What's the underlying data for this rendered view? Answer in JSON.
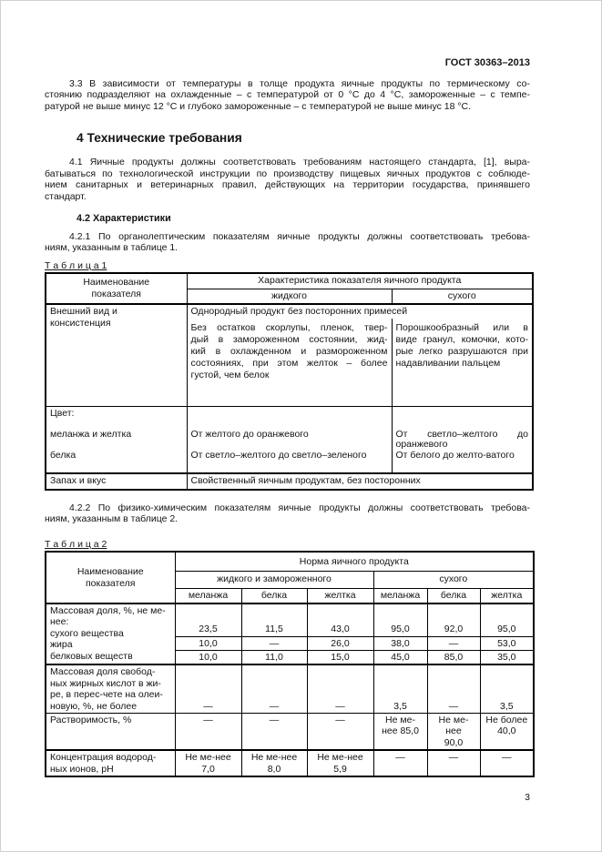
{
  "doc": {
    "header": "ГОСТ 30363–2013",
    "page_number": "3"
  },
  "sections": {
    "p33": "3.3 В зависимости от температуры в толще продукта яичные продукты по термическому со-\nстоянию подразделяют на охлажденные – с температурой от 0 °С до 4 °С, замороженные – с темпе-\nратурой не выше минус 12 °С и глубоко замороженные – с температурой не выше минус 18 °С.",
    "h4": "4 Технические требования",
    "p41": "4.1 Яичные продукты должны соответствовать требованиям настоящего стандарта, [1], выра-\nбатываться по технологической инструкции по производству пищевых яичных продуктов с соблюде-\nнием санитарных и ветеринарных правил, действующих на территории государства, принявшего\nстандарт.",
    "h42": "4.2 Характеристики",
    "p421": "4.2.1 По органолептическим показателям яичные продукты должны соответствовать требова-\nниям, указанным в таблице 1.",
    "p422": "4.2.2 По физико-химическим показателям яичные продукты должны соответствовать требова-\nниям, указанным в таблице 2."
  },
  "table1": {
    "caption": "Т а б л и ц а 1",
    "head": {
      "name": "Наименование\nпоказателя",
      "characteristic": "Характеристика показателя яичного продукта",
      "liquid": "жидкого",
      "dry": "сухого"
    },
    "appearance": {
      "name": "Внешний вид и\nконсистенция",
      "common": "Однородный продукт без посторонних примесей",
      "liquid": "Без остатков скорлупы, пленок, твер-\nдый в замороженном состоянии, жид-\nкий в охлажденном и размороженном\nсостояниях, при этом желток – более\nгустой, чем белок",
      "dry": "Порошкообразный или в\nвиде гранул, комочки, кото-\nрые легко разрушаются при\nнадавливании пальцем"
    },
    "color": {
      "name": "Цвет:\n\nмеланжа и желтка\n\nбелка",
      "liquid": "\n\nОт желтого до оранжевого\n\nОт светло–желтого до светло–зеленого",
      "dry": "\n\nОт светло–желтого до\nоранжевого\nОт белого до желто-ватого"
    },
    "smell": {
      "name": "Запах и вкус",
      "value": "Свойственный яичным продуктам, без посторонних"
    }
  },
  "table2": {
    "caption": "Т а б л и ц а 2",
    "head": {
      "name": "Наименование\nпоказателя",
      "norm": "Норма яичного продукта",
      "liquid": "жидкого и замороженного",
      "dry": "сухого",
      "subcols": [
        "меланжа",
        "белка",
        "желтка",
        "меланжа",
        "белка",
        "желтка"
      ]
    },
    "mass_fraction": {
      "name": "Массовая доля, %, не ме-\nнее:\nсухого вещества\nжира\nбелковых веществ",
      "dry_matter": [
        "23,5",
        "11,5",
        "43,0",
        "95,0",
        "92,0",
        "95,0"
      ],
      "fat": [
        "10,0",
        "—",
        "26,0",
        "38,0",
        "—",
        "53,0"
      ],
      "protein": [
        "10,0",
        "11,0",
        "15,0",
        "45,0",
        "85,0",
        "35,0"
      ]
    },
    "fatty_acids": {
      "name": "Массовая доля свобод-\nных жирных кислот в жи-\nре, в перес-чете на олеи-\nновую, %, не более",
      "values": [
        "—",
        "—",
        "—",
        "3,5",
        "—",
        "3,5"
      ]
    },
    "solubility": {
      "name": "Растворимость, %",
      "values": [
        "—",
        "—",
        "—",
        "Не ме-\nнее 85,0",
        "Не ме-\nнее\n90,0",
        "Не более\n40,0"
      ]
    },
    "ph": {
      "name": "Концентрация водород-\nных ионов, рН",
      "values": [
        "Не ме-нее\n7,0",
        "Не ме-нее\n8,0",
        "Не ме-нее\n5,9",
        "—",
        "—",
        "—"
      ]
    }
  }
}
